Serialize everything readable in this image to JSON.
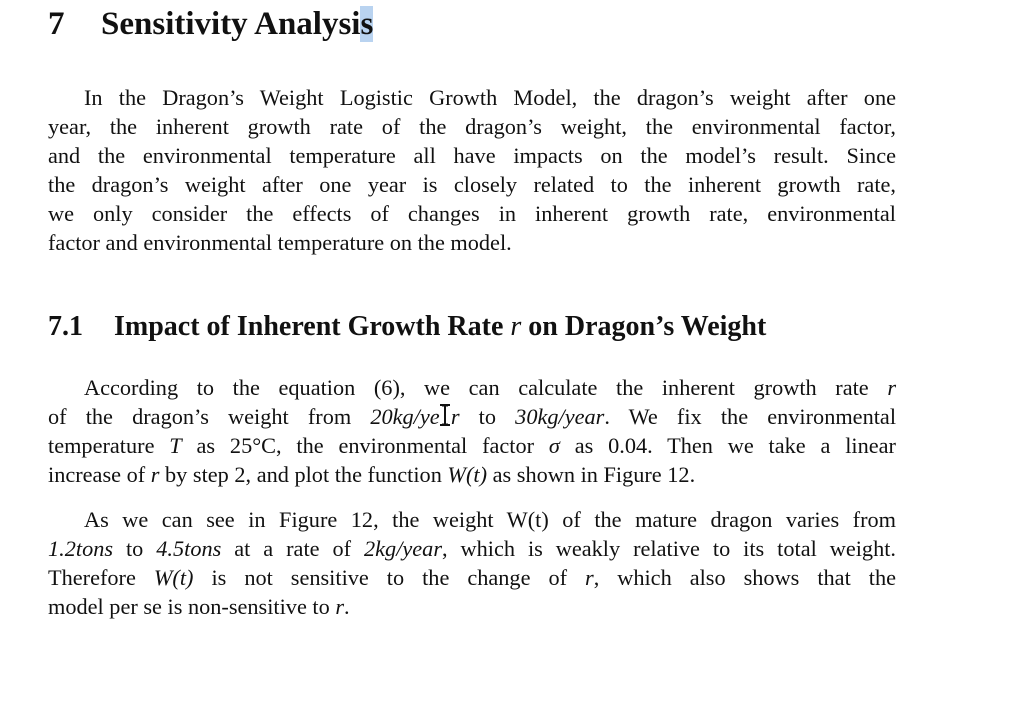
{
  "section": {
    "number": "7",
    "title_main": "Sensitivity Analysi",
    "title_last": "s"
  },
  "intro": {
    "lines": [
      "In the Dragon’s Weight Logistic Growth Model, the dragon’s weight after one",
      "year, the inherent growth rate of the dragon’s weight, the environmental factor,",
      "and the environmental temperature all have impacts on the model’s result. Since",
      "the dragon’s weight after one year is closely related to the inherent growth rate,",
      "we only consider the effects of changes in inherent growth rate, environmental",
      "factor and environmental temperature on the model."
    ]
  },
  "subsection": {
    "number": "7.1",
    "title_before": "Impact of Inherent Growth Rate ",
    "symbol": "r",
    "title_after": " on Dragon’s Weight"
  },
  "para1": {
    "l1_text": "According to the equation (6), we can calculate the inherent growth rate ",
    "l1_sym": "r",
    "l2_a": "of the dragon’s weight from ",
    "l2_m1": "20kg/ye",
    "l2_m1_hidden": "a",
    "l2_m1_end": "r",
    "l2_b": " to ",
    "l2_m2": "30kg/year",
    "l2_c": ". We fix the environmental",
    "l3_a": "temperature ",
    "l3_m1": "T",
    "l3_b": " as ",
    "l3_m2": "25°C",
    "l3_c": ", the environmental factor ",
    "l3_m3": "σ",
    "l3_d": " as ",
    "l3_m4": "0.04",
    "l3_e": ". Then we take a linear",
    "l4_a": "increase of ",
    "l4_m1": "r",
    "l4_b": " by step ",
    "l4_m2": "2",
    "l4_c": ", and plot the function ",
    "l4_m3": "W(t)",
    "l4_d": " as shown in Figure 12."
  },
  "para2": {
    "l1": "As we can see in Figure 12, the weight W(t) of the mature dragon varies from",
    "l2_m1": "1.2tons",
    "l2_a": " to ",
    "l2_m2": "4.5tons",
    "l2_b": " at a rate of ",
    "l2_m3": "2kg/year",
    "l2_c": ", which is weakly relative to its total weight.",
    "l3_a": "Therefore ",
    "l3_m1": "W(t)",
    "l3_b": " is not sensitive to the change of ",
    "l3_m2": "r",
    "l3_c": ", which also shows that the",
    "l4_a": "model per se is non-sensitive to ",
    "l4_m1": "r",
    "l4_b": "."
  },
  "cursor": {
    "icon": "text-ibeam-cursor-icon",
    "color": "#111111"
  },
  "selection": {
    "color": "#b9d3f0"
  }
}
